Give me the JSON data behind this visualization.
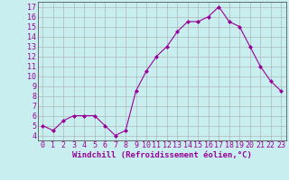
{
  "x": [
    0,
    1,
    2,
    3,
    4,
    5,
    6,
    7,
    8,
    9,
    10,
    11,
    12,
    13,
    14,
    15,
    16,
    17,
    18,
    19,
    20,
    21,
    22,
    23
  ],
  "y": [
    5.0,
    4.5,
    5.5,
    6.0,
    6.0,
    6.0,
    5.0,
    4.0,
    4.5,
    8.5,
    10.5,
    12.0,
    13.0,
    14.5,
    15.5,
    15.5,
    16.0,
    17.0,
    15.5,
    15.0,
    13.0,
    11.0,
    9.5,
    8.5
  ],
  "line_color": "#990099",
  "marker": "D",
  "marker_size": 2,
  "bg_color": "#c8eef0",
  "grid_color": "#aaaaaa",
  "xlabel": "Windchill (Refroidissement éolien,°C)",
  "ylabel_ticks": [
    4,
    5,
    6,
    7,
    8,
    9,
    10,
    11,
    12,
    13,
    14,
    15,
    16,
    17
  ],
  "xtick_labels": [
    "0",
    "1",
    "2",
    "3",
    "4",
    "5",
    "6",
    "7",
    "8",
    "9",
    "10",
    "11",
    "12",
    "13",
    "14",
    "15",
    "16",
    "17",
    "18",
    "19",
    "20",
    "21",
    "22",
    "23"
  ],
  "xlim": [
    -0.5,
    23.5
  ],
  "ylim": [
    3.5,
    17.5
  ],
  "xlabel_fontsize": 6.5,
  "tick_fontsize": 6,
  "label_color": "#990099",
  "axis_label_color": "#990099"
}
